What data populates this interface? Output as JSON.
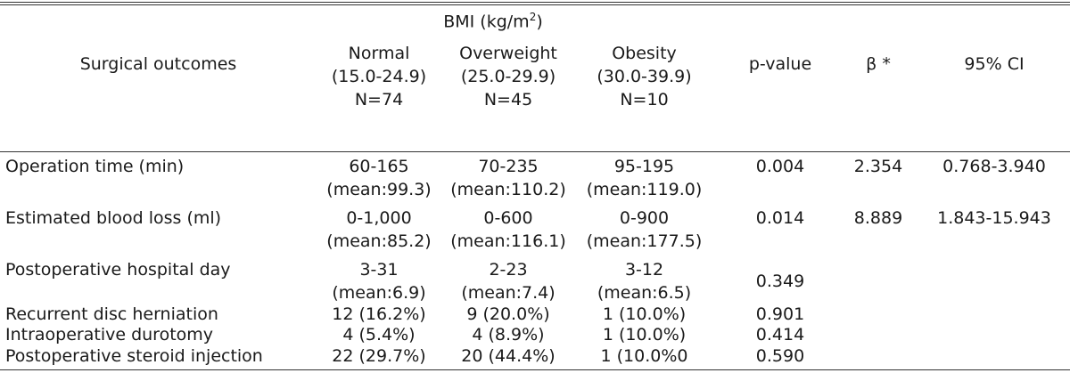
{
  "header": {
    "bmi_label": "BMI (kg/m",
    "bmi_sup": "2",
    "bmi_close": ")",
    "outcomes": "Surgical outcomes",
    "groups": [
      {
        "name": "Normal",
        "range": "(15.0-24.9)",
        "n": "N=74"
      },
      {
        "name": "Overweight",
        "range": "(25.0-29.9)",
        "n": "N=45"
      },
      {
        "name": "Obesity",
        "range": "(30.0-39.9)",
        "n": "N=10"
      }
    ],
    "pvalue": "p-value",
    "beta": "β *",
    "ci": "95% CI"
  },
  "rows": [
    {
      "label": "Operation time (min)",
      "normal": [
        "60-165",
        "(mean:99.3)"
      ],
      "overweight": [
        "70-235",
        "(mean:110.2)"
      ],
      "obesity": [
        "95-195",
        "(mean:119.0)"
      ],
      "p": "0.004",
      "beta": "2.354",
      "ci": "0.768-3.940"
    },
    {
      "label": "Estimated blood loss (ml)",
      "normal": [
        "0-1,000",
        "(mean:85.2)"
      ],
      "overweight": [
        "0-600",
        "(mean:116.1)"
      ],
      "obesity": [
        "0-900",
        "(mean:177.5)"
      ],
      "p": "0.014",
      "beta": "8.889",
      "ci": "1.843-15.943"
    },
    {
      "label": "Postoperative hospital day",
      "normal": [
        "3-31",
        "(mean:6.9)"
      ],
      "overweight": [
        "2-23",
        "(mean:7.4)"
      ],
      "obesity": [
        "3-12",
        "(mean:6.5)"
      ],
      "p": "0.349",
      "beta": "",
      "ci": ""
    },
    {
      "label": "Recurrent disc herniation",
      "normal": [
        "12 (16.2%)"
      ],
      "overweight": [
        "9 (20.0%)"
      ],
      "obesity": [
        "1 (10.0%)"
      ],
      "p": "0.901",
      "beta": "",
      "ci": ""
    },
    {
      "label": "Intraoperative durotomy",
      "normal": [
        "4 (5.4%)"
      ],
      "overweight": [
        "4 (8.9%)"
      ],
      "obesity": [
        "1 (10.0%)"
      ],
      "p": "0.414",
      "beta": "",
      "ci": ""
    },
    {
      "label": "Postoperative steroid injection",
      "normal": [
        "22 (29.7%)"
      ],
      "overweight": [
        "20 (44.4%)"
      ],
      "obesity": [
        "1 (10.0%0"
      ],
      "p": "0.590",
      "beta": "",
      "ci": ""
    }
  ]
}
